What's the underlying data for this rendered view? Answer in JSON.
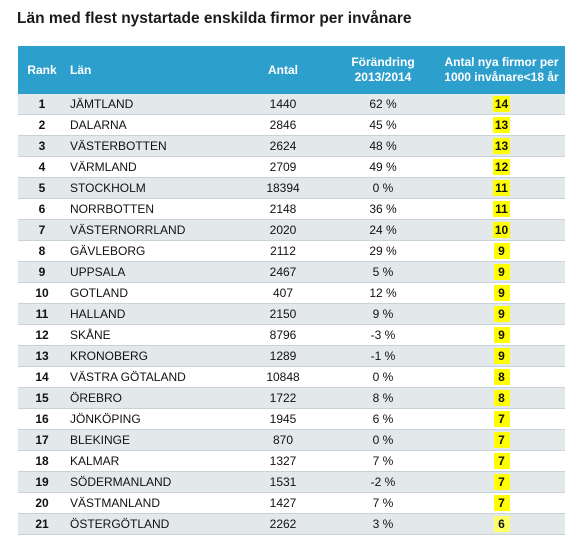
{
  "title": "Län med flest nystartade enskilda firmor per invånare",
  "headers": {
    "rank": "Rank",
    "lan": "Län",
    "antal": "Antal",
    "change_line1": "Förändring",
    "change_line2": "2013/2014",
    "rate_line1": "Antal nya firmor per",
    "rate_line2": "1000 invånare<18 år"
  },
  "colors": {
    "header_bg": "#2d9fcd",
    "row_alt_bg": "#e3e8ea",
    "highlight": "#ffff00"
  },
  "rows": [
    {
      "rank": "1",
      "lan": "JÄMTLAND",
      "antal": "1440",
      "change": "62 %",
      "rate": "14"
    },
    {
      "rank": "2",
      "lan": "DALARNA",
      "antal": "2846",
      "change": "45 %",
      "rate": "13"
    },
    {
      "rank": "3",
      "lan": "VÄSTERBOTTEN",
      "antal": "2624",
      "change": "48 %",
      "rate": "13"
    },
    {
      "rank": "4",
      "lan": "VÄRMLAND",
      "antal": "2709",
      "change": "49 %",
      "rate": "12"
    },
    {
      "rank": "5",
      "lan": "STOCKHOLM",
      "antal": "18394",
      "change": "0 %",
      "rate": "11"
    },
    {
      "rank": "6",
      "lan": "NORRBOTTEN",
      "antal": "2148",
      "change": "36 %",
      "rate": "11"
    },
    {
      "rank": "7",
      "lan": "VÄSTERNORRLAND",
      "antal": "2020",
      "change": "24 %",
      "rate": "10"
    },
    {
      "rank": "8",
      "lan": "GÄVLEBORG",
      "antal": "2112",
      "change": "29 %",
      "rate": "9"
    },
    {
      "rank": "9",
      "lan": "UPPSALA",
      "antal": "2467",
      "change": "5 %",
      "rate": "9"
    },
    {
      "rank": "10",
      "lan": "GOTLAND",
      "antal": "407",
      "change": "12 %",
      "rate": "9"
    },
    {
      "rank": "11",
      "lan": "HALLAND",
      "antal": "2150",
      "change": "9 %",
      "rate": "9"
    },
    {
      "rank": "12",
      "lan": "SKÅNE",
      "antal": "8796",
      "change": "-3 %",
      "rate": "9"
    },
    {
      "rank": "13",
      "lan": "KRONOBERG",
      "antal": "1289",
      "change": "-1 %",
      "rate": "9"
    },
    {
      "rank": "14",
      "lan": "VÄSTRA GÖTALAND",
      "antal": "10848",
      "change": "0 %",
      "rate": "8"
    },
    {
      "rank": "15",
      "lan": "ÖREBRO",
      "antal": "1722",
      "change": "8 %",
      "rate": "8"
    },
    {
      "rank": "16",
      "lan": "JÖNKÖPING",
      "antal": "1945",
      "change": "6 %",
      "rate": "7"
    },
    {
      "rank": "17",
      "lan": "BLEKINGE",
      "antal": "870",
      "change": "0 %",
      "rate": "7"
    },
    {
      "rank": "18",
      "lan": "KALMAR",
      "antal": "1327",
      "change": "7 %",
      "rate": "7"
    },
    {
      "rank": "19",
      "lan": "SÖDERMANLAND",
      "antal": "1531",
      "change": "-2 %",
      "rate": "7"
    },
    {
      "rank": "20",
      "lan": "VÄSTMANLAND",
      "antal": "1427",
      "change": "7 %",
      "rate": "7"
    },
    {
      "rank": "21",
      "lan": "ÖSTERGÖTLAND",
      "antal": "2262",
      "change": "3 %",
      "rate": "6"
    }
  ]
}
